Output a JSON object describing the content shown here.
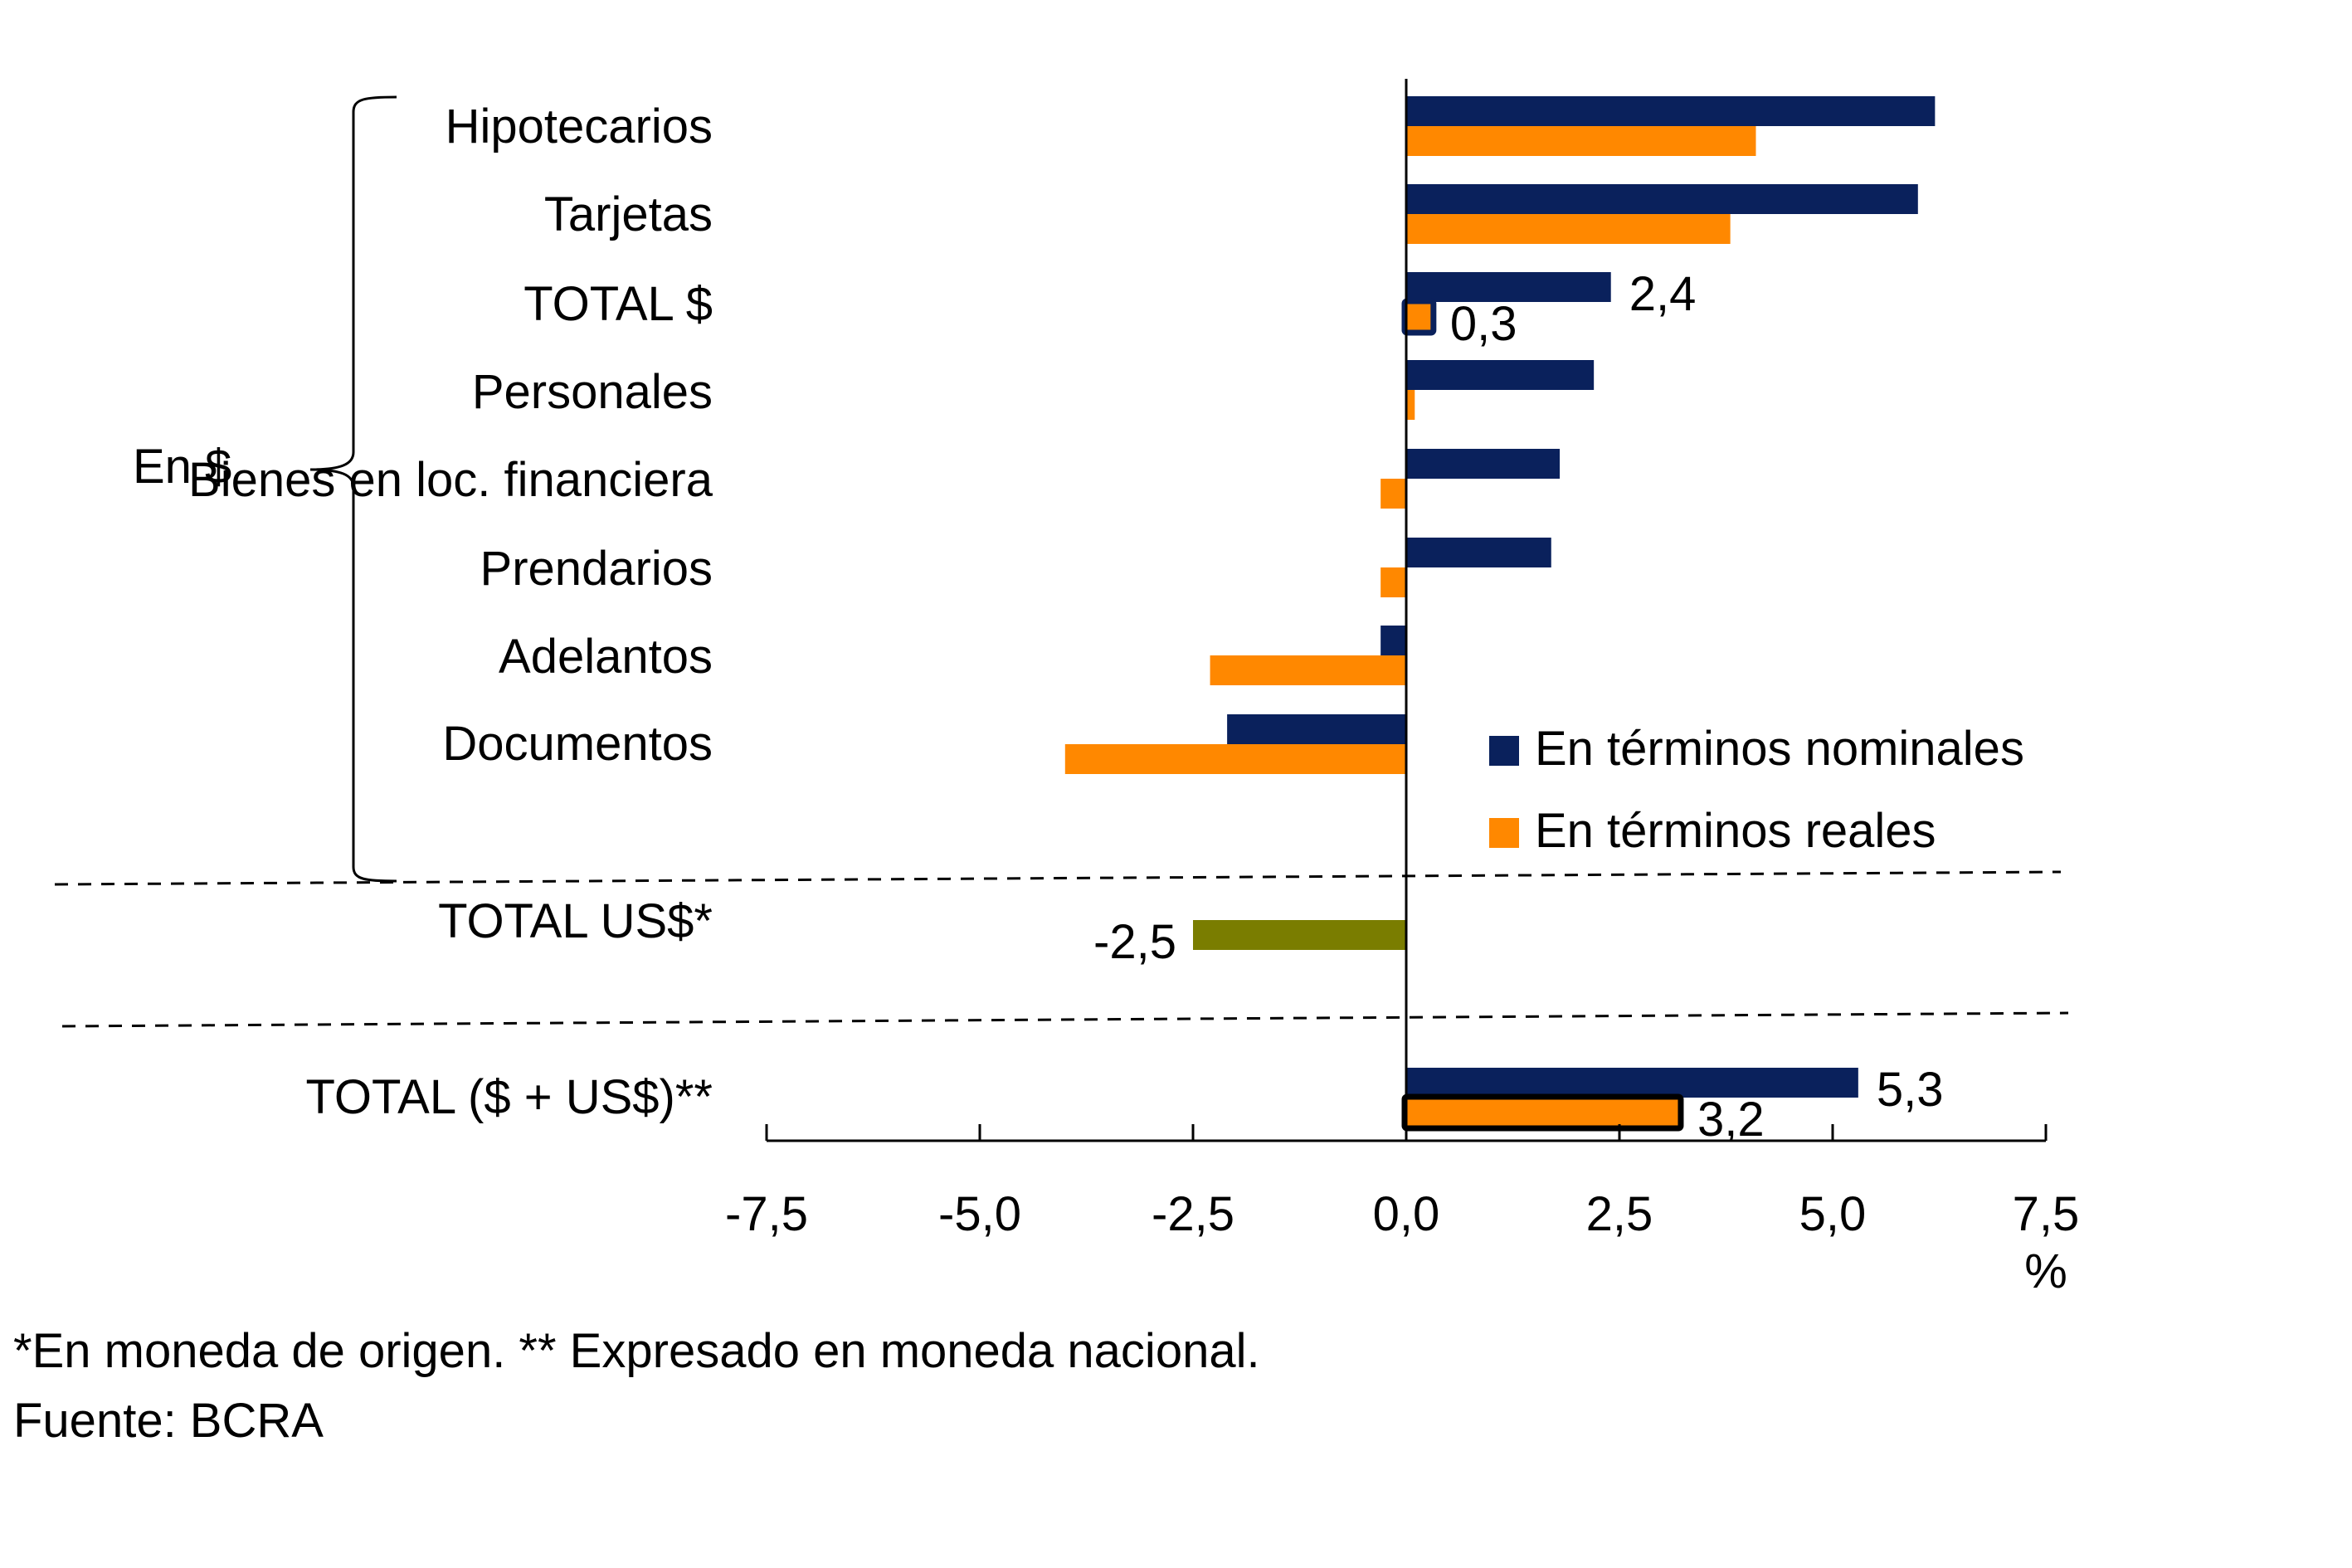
{
  "chart_data": {
    "type": "bar",
    "orientation": "horizontal",
    "title": "",
    "xlabel": "%",
    "ylabel": "",
    "xlim": [
      -7.5,
      7.5
    ],
    "xticks": [
      -7.5,
      -5.0,
      -2.5,
      0.0,
      2.5,
      5.0,
      7.5
    ],
    "xtick_labels": [
      "-7,5",
      "-5,0",
      "-2,5",
      "0,0",
      "2,5",
      "5,0",
      "7,5"
    ],
    "grid": false,
    "legend_position": "right-middle",
    "categories": [
      "Hipotecarios",
      "Tarjetas",
      "TOTAL $",
      "Personales",
      "Bienes en loc. financiera",
      "Prendarios",
      "Adelantos",
      "Documentos",
      "TOTAL US$*",
      "TOTAL ($ + US$)**"
    ],
    "series": [
      {
        "name": "En términos nominales",
        "color": "#0a215c",
        "values": [
          6.2,
          6.0,
          2.4,
          2.2,
          1.8,
          1.7,
          -0.3,
          -2.1,
          null,
          5.3
        ]
      },
      {
        "name": "En términos reales",
        "color": "#ff8800",
        "values": [
          4.1,
          3.8,
          0.3,
          0.1,
          -0.3,
          -0.3,
          -2.3,
          -4.0,
          null,
          3.2
        ]
      },
      {
        "name": "TOTAL US$ (moneda de origen)",
        "color": "#7a7d00",
        "values": [
          null,
          null,
          null,
          null,
          null,
          null,
          null,
          null,
          -2.5,
          null
        ]
      }
    ],
    "data_labels": [
      {
        "category": "TOTAL $",
        "series": "En términos nominales",
        "text": "2,4"
      },
      {
        "category": "TOTAL $",
        "series": "En términos reales",
        "text": "0,3",
        "highlight": "#0a215c"
      },
      {
        "category": "TOTAL US$*",
        "series": "TOTAL US$ (moneda de origen)",
        "text": "-2,5"
      },
      {
        "category": "TOTAL ($ + US$)**",
        "series": "En términos nominales",
        "text": "5,3"
      },
      {
        "category": "TOTAL ($ + US$)**",
        "series": "En términos reales",
        "text": "3,2",
        "highlight": "#000000"
      }
    ],
    "group_label": "En $",
    "group_members": [
      "Hipotecarios",
      "Tarjetas",
      "TOTAL $",
      "Personales",
      "Bienes en loc. financiera",
      "Prendarios",
      "Adelantos",
      "Documentos"
    ]
  },
  "legend": [
    {
      "label": "En términos nominales",
      "color": "#0a215c"
    },
    {
      "label": "En términos reales",
      "color": "#ff8800"
    }
  ],
  "footnotes": [
    "*En moneda de origen. ** Expresado en moneda nacional.",
    "Fuente: BCRA"
  ]
}
